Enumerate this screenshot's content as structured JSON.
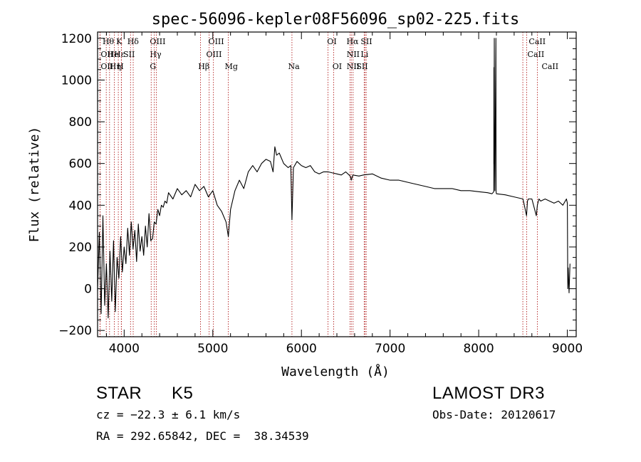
{
  "chart_data": {
    "type": "line",
    "title": "spec-56096-kepler08F56096_sp02-225.fits",
    "xlabel": "Wavelength (Å)",
    "ylabel": "Flux (relative)",
    "xlim": [
      3700,
      9100
    ],
    "ylim": [
      -230,
      1230
    ],
    "x_ticks": [
      4000,
      5000,
      6000,
      7000,
      8000,
      9000
    ],
    "x_tick_labels": [
      "4000",
      "5000",
      "6000",
      "7000",
      "8000",
      "9000"
    ],
    "y_ticks": [
      -200,
      0,
      200,
      400,
      600,
      800,
      1000,
      1200
    ],
    "y_tick_labels": [
      "−200",
      "0",
      "200",
      "400",
      "600",
      "800",
      "1000",
      "1200"
    ],
    "series": [
      {
        "name": "flux",
        "x": [
          3700,
          3720,
          3740,
          3760,
          3780,
          3800,
          3820,
          3840,
          3860,
          3880,
          3900,
          3920,
          3940,
          3960,
          3980,
          4000,
          4020,
          4040,
          4060,
          4080,
          4100,
          4120,
          4140,
          4160,
          4180,
          4200,
          4220,
          4240,
          4260,
          4280,
          4300,
          4320,
          4340,
          4360,
          4380,
          4400,
          4420,
          4440,
          4460,
          4480,
          4500,
          4550,
          4600,
          4650,
          4700,
          4750,
          4800,
          4850,
          4900,
          4950,
          5000,
          5050,
          5100,
          5150,
          5175,
          5200,
          5250,
          5300,
          5350,
          5400,
          5450,
          5500,
          5550,
          5600,
          5650,
          5680,
          5700,
          5720,
          5750,
          5800,
          5850,
          5880,
          5893,
          5910,
          5950,
          6000,
          6050,
          6100,
          6150,
          6200,
          6250,
          6300,
          6350,
          6400,
          6450,
          6500,
          6550,
          6563,
          6580,
          6650,
          6700,
          6800,
          6900,
          7000,
          7100,
          7200,
          7300,
          7400,
          7500,
          7600,
          7700,
          7800,
          7900,
          8000,
          8100,
          8150,
          8170,
          8172,
          8174,
          8176,
          8178,
          8182,
          8194,
          8196,
          8200,
          8300,
          8400,
          8500,
          8540,
          8550,
          8560,
          8600,
          8650,
          8662,
          8680,
          8700,
          8750,
          8800,
          8850,
          8900,
          8950,
          8990,
          9000,
          9005,
          9010,
          9020,
          9030
        ],
        "values": [
          -10,
          270,
          -120,
          350,
          -80,
          120,
          -140,
          180,
          -60,
          230,
          -110,
          150,
          50,
          250,
          80,
          200,
          120,
          290,
          160,
          320,
          190,
          280,
          130,
          310,
          180,
          250,
          160,
          300,
          200,
          360,
          230,
          240,
          320,
          310,
          380,
          350,
          400,
          390,
          420,
          410,
          460,
          430,
          480,
          450,
          470,
          440,
          500,
          470,
          490,
          440,
          470,
          400,
          370,
          320,
          250,
          380,
          470,
          520,
          480,
          560,
          590,
          560,
          600,
          620,
          610,
          560,
          680,
          640,
          650,
          600,
          580,
          590,
          330,
          580,
          610,
          590,
          580,
          590,
          560,
          550,
          560,
          560,
          555,
          550,
          545,
          560,
          540,
          520,
          545,
          540,
          545,
          550,
          530,
          520,
          520,
          510,
          500,
          490,
          480,
          480,
          480,
          470,
          470,
          465,
          460,
          455,
          465,
          1060,
          600,
          1200,
          700,
          470,
          1200,
          465,
          455,
          450,
          440,
          430,
          350,
          420,
          430,
          430,
          350,
          400,
          430,
          420,
          430,
          420,
          410,
          420,
          400,
          430,
          410,
          0,
          100,
          -20,
          120
        ]
      }
    ],
    "line_markers": [
      {
        "label": "Hθ",
        "x": 3798,
        "row": 0,
        "label_x": 3756
      },
      {
        "label": "K",
        "x": 3934,
        "row": 0,
        "label_x": 3910
      },
      {
        "label": "Hδ",
        "x": 4102,
        "row": 0,
        "label_x": 4035
      },
      {
        "label": "OIII",
        "x": 4363,
        "row": 0,
        "label_x": 4290
      },
      {
        "label": "OIII",
        "x": 4959,
        "row": 0,
        "label_x": 4950
      },
      {
        "label": "OI",
        "x": 6300,
        "row": 0,
        "label_x": 6290
      },
      {
        "label": "Hα",
        "x": 6563,
        "row": 0,
        "label_x": 6508
      },
      {
        "label": "SII",
        "x": 6717,
        "row": 0,
        "label_x": 6668
      },
      {
        "label": "CaII",
        "x": 8498,
        "row": 0,
        "label_x": 8565
      },
      {
        "label": "OII",
        "x": 3727,
        "row": 1,
        "label_x": 3735
      },
      {
        "label": "He",
        "x": 3889,
        "row": 1,
        "label_x": 3810
      },
      {
        "label": "Hε",
        "x": 3970,
        "row": 1,
        "label_x": 3885
      },
      {
        "label": "SII",
        "x": 4072,
        "row": 1,
        "label_x": 3990
      },
      {
        "label": "Hγ",
        "x": 4340,
        "row": 1,
        "label_x": 4290
      },
      {
        "label": "OIII",
        "x": 5007,
        "row": 1,
        "label_x": 4925
      },
      {
        "label": "NII",
        "x": 6548,
        "row": 1,
        "label_x": 6510
      },
      {
        "label": "Li",
        "x": 6708,
        "row": 1,
        "label_x": 6668
      },
      {
        "label": "CaII",
        "x": 8542,
        "row": 1,
        "label_x": 8550
      },
      {
        "label": "OII",
        "x": 3729,
        "row": 2,
        "label_x": 3735
      },
      {
        "label": "Hη",
        "x": 3835,
        "row": 2,
        "label_x": 3835
      },
      {
        "label": "H",
        "x": 3968,
        "row": 2,
        "label_x": 3918
      },
      {
        "label": "G",
        "x": 4305,
        "row": 2,
        "label_x": 4290
      },
      {
        "label": "Hβ",
        "x": 4861,
        "row": 2,
        "label_x": 4835
      },
      {
        "label": "Mg",
        "x": 5175,
        "row": 2,
        "label_x": 5135
      },
      {
        "label": "Na",
        "x": 5893,
        "row": 2,
        "label_x": 5850
      },
      {
        "label": "OI",
        "x": 6364,
        "row": 2,
        "label_x": 6350
      },
      {
        "label": "NII",
        "x": 6583,
        "row": 2,
        "label_x": 6510
      },
      {
        "label": "SII",
        "x": 6731,
        "row": 2,
        "label_x": 6620
      },
      {
        "label": "CaII",
        "x": 8662,
        "row": 2,
        "label_x": 8710
      }
    ],
    "marker_color": "#b22222",
    "line_color": "#000000"
  },
  "info": {
    "object_class": "STAR",
    "subclass": "K5",
    "redshift": "cz = −22.3 ± 6.1 km/s",
    "coords": "RA = 292.65842, DEC =  38.34539",
    "survey": "LAMOST DR3",
    "obs_date": "Obs-Date: 20120617"
  }
}
